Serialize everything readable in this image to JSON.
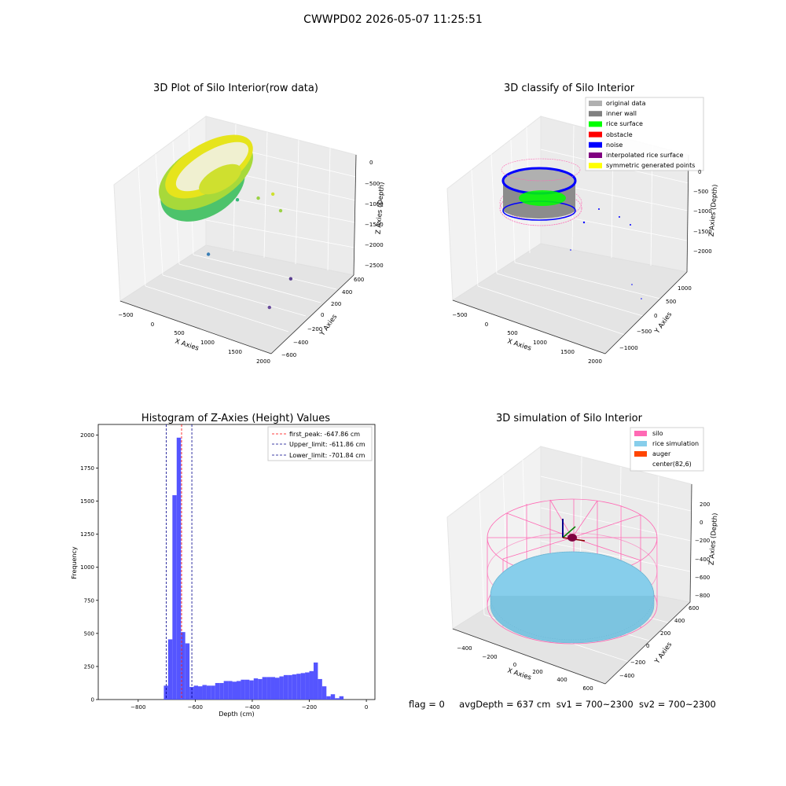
{
  "figure": {
    "title": "CWWPD02 2026-05-07 11:25:51",
    "stats": {
      "flag": "flag = 0",
      "avg_depth": "avgDepth = 637 cm",
      "sv1": "sv1 = 700~2300",
      "sv2": "sv2 = 700~2300"
    }
  },
  "colors": {
    "original_data": "#b0b0b0",
    "inner_wall": "#808080",
    "rice_surface": "#00ff00",
    "obstacle": "#ff0000",
    "noise": "#0000ff",
    "interpolated_rice_surface": "#800080",
    "symmetric_generated_points": "#ffff00",
    "silo": "#ff69b4",
    "rice_simulation": "#87ceeb",
    "auger": "#ff4500",
    "hist_bar": "#4c4cff",
    "first_peak_line": "#ff0000",
    "limit_line": "#00008b"
  },
  "chart_data": [
    {
      "type": "scatter",
      "subtype": "scatter3d",
      "title": "3D Plot of Silo Interior(row data)",
      "xlabel": "X Axies",
      "ylabel": "Y Axies",
      "zlabel": "Z Axies (Depth)",
      "xticks": [
        "−500",
        "0",
        "500",
        "1000",
        "1500",
        "2000"
      ],
      "yticks": [
        "−600",
        "−400",
        "−200",
        "0",
        "200",
        "400",
        "600"
      ],
      "zticks": [
        "0",
        "−500",
        "−1000",
        "−1500",
        "−2000",
        "−2500"
      ],
      "points": [
        {
          "x": 300,
          "y": -50,
          "z": -1900,
          "color": "#3b7fb6"
        },
        {
          "x": 1700,
          "y": -300,
          "z": -2100,
          "color": "#6a4c9c"
        },
        {
          "x": 1650,
          "y": 50,
          "z": -2000,
          "color": "#5a3f8f"
        },
        {
          "x": 700,
          "y": 350,
          "z": -1100,
          "color": "#9bd246"
        },
        {
          "x": 900,
          "y": 400,
          "z": -1000,
          "color": "#cfe02f"
        },
        {
          "x": 1100,
          "y": 350,
          "z": -1200,
          "color": "#9bd246"
        },
        {
          "x": 450,
          "y": 250,
          "z": -1100,
          "color": "#35b779"
        }
      ]
    },
    {
      "type": "scatter",
      "subtype": "scatter3d",
      "title": "3D classify of Silo Interior",
      "xlabel": "X Axies",
      "ylabel": "Y Axies",
      "zlabel": "Z Axies (Depth)",
      "xticks": [
        "−500",
        "0",
        "500",
        "1000",
        "1500",
        "2000"
      ],
      "yticks": [
        "−1000",
        "−500",
        "0",
        "500",
        "1000"
      ],
      "zticks": [
        "0",
        "−500",
        "−1000",
        "−1500",
        "−2000"
      ],
      "legend": [
        {
          "label": "original data",
          "color": "#b0b0b0"
        },
        {
          "label": "inner wall",
          "color": "#808080"
        },
        {
          "label": "rice surface",
          "color": "#00ff00"
        },
        {
          "label": "obstacle",
          "color": "#ff0000"
        },
        {
          "label": "noise",
          "color": "#0000ff"
        },
        {
          "label": "interpolated rice surface",
          "color": "#800080"
        },
        {
          "label": "symmetric generated points",
          "color": "#ffff00"
        }
      ],
      "legend_position": "upper-right"
    },
    {
      "type": "bar",
      "subtype": "histogram",
      "title": "Histogram of Z-Axies (Height) Values",
      "xlabel": "Depth (cm)",
      "ylabel": "Frequency",
      "xlim": [
        -940,
        30
      ],
      "ylim": [
        0,
        2080
      ],
      "xticks": [
        -800,
        -600,
        -400,
        -200,
        0
      ],
      "yticks": [
        0,
        250,
        500,
        750,
        1000,
        1250,
        1500,
        1750,
        2000
      ],
      "bin_width": 15,
      "bins": [
        {
          "x": -710,
          "v": 105
        },
        {
          "x": -695,
          "v": 455
        },
        {
          "x": -680,
          "v": 1545
        },
        {
          "x": -665,
          "v": 1980
        },
        {
          "x": -650,
          "v": 510
        },
        {
          "x": -635,
          "v": 425
        },
        {
          "x": -620,
          "v": 95
        },
        {
          "x": -605,
          "v": 105
        },
        {
          "x": -590,
          "v": 100
        },
        {
          "x": -575,
          "v": 110
        },
        {
          "x": -560,
          "v": 105
        },
        {
          "x": -545,
          "v": 105
        },
        {
          "x": -530,
          "v": 125
        },
        {
          "x": -515,
          "v": 125
        },
        {
          "x": -500,
          "v": 140
        },
        {
          "x": -485,
          "v": 140
        },
        {
          "x": -470,
          "v": 135
        },
        {
          "x": -455,
          "v": 140
        },
        {
          "x": -440,
          "v": 150
        },
        {
          "x": -425,
          "v": 150
        },
        {
          "x": -410,
          "v": 145
        },
        {
          "x": -395,
          "v": 160
        },
        {
          "x": -380,
          "v": 155
        },
        {
          "x": -365,
          "v": 170
        },
        {
          "x": -350,
          "v": 170
        },
        {
          "x": -335,
          "v": 170
        },
        {
          "x": -320,
          "v": 165
        },
        {
          "x": -305,
          "v": 175
        },
        {
          "x": -290,
          "v": 185
        },
        {
          "x": -275,
          "v": 185
        },
        {
          "x": -260,
          "v": 190
        },
        {
          "x": -245,
          "v": 195
        },
        {
          "x": -230,
          "v": 200
        },
        {
          "x": -215,
          "v": 205
        },
        {
          "x": -200,
          "v": 215
        },
        {
          "x": -185,
          "v": 280
        },
        {
          "x": -170,
          "v": 155
        },
        {
          "x": -155,
          "v": 100
        },
        {
          "x": -140,
          "v": 25
        },
        {
          "x": -125,
          "v": 40
        },
        {
          "x": -110,
          "v": 10
        },
        {
          "x": -95,
          "v": 25
        }
      ],
      "vlines": [
        {
          "label": "first_peak: -647.86 cm",
          "x": -647.86,
          "color": "#ff0000"
        },
        {
          "label": "Upper_limit: -611.86 cm",
          "x": -611.86,
          "color": "#00008b"
        },
        {
          "label": "Lower_limit: -701.84 cm",
          "x": -701.84,
          "color": "#00008b"
        }
      ],
      "legend_position": "upper-right"
    },
    {
      "type": "scatter",
      "subtype": "surface3d",
      "title": "3D simulation of Silo Interior",
      "xlabel": "X Axies",
      "ylabel": "Y Axies",
      "zlabel": "Z Axies (Depth)",
      "xticks": [
        "−400",
        "−200",
        "0",
        "200",
        "400",
        "600"
      ],
      "yticks": [
        "−400",
        "−200",
        "0",
        "200",
        "400",
        "600"
      ],
      "zticks": [
        "200",
        "0",
        "−200",
        "−400",
        "−600",
        "−800"
      ],
      "legend": [
        {
          "label": "silo",
          "color": "#ff69b4"
        },
        {
          "label": "rice simulation",
          "color": "#87ceeb"
        },
        {
          "label": "auger",
          "color": "#ff4500"
        },
        {
          "label": "center(82,6)",
          "color": "#ffffff"
        }
      ],
      "legend_position": "upper-right"
    }
  ]
}
